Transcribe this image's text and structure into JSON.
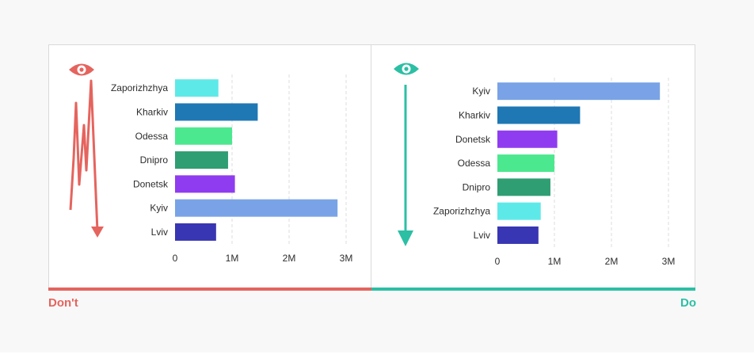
{
  "colors": {
    "dont": "#e5645e",
    "do": "#2cbfa4",
    "grid": "#dcdcdc",
    "cities": {
      "Zaporizhzhya": "#5ee9e9",
      "Kharkiv": "#1f78b4",
      "Odessa": "#4ce88f",
      "Dnipro": "#2f9e72",
      "Donetsk": "#8f3cf0",
      "Kyiv": "#79a3e6",
      "Lviv": "#3936b3"
    }
  },
  "labels": {
    "dont": "Don't",
    "do": "Do"
  },
  "icons": {
    "dont_eye": "eye-icon",
    "dont_arrow": "zigzag-arrow-icon",
    "do_eye": "eye-icon",
    "do_arrow": "down-arrow-icon"
  },
  "chart_data": [
    {
      "type": "bar",
      "orientation": "horizontal",
      "title": "",
      "xlabel": "",
      "ylabel": "",
      "categories": [
        "Zaporizhzhya",
        "Kharkiv",
        "Odessa",
        "Dnipro",
        "Donetsk",
        "Kyiv",
        "Lviv"
      ],
      "values": [
        760000,
        1450000,
        1000000,
        930000,
        1050000,
        2850000,
        720000
      ],
      "xlim": [
        0,
        3000000
      ],
      "xticks": [
        "0",
        "1M",
        "2M",
        "3M"
      ],
      "grid": true
    },
    {
      "type": "bar",
      "orientation": "horizontal",
      "title": "",
      "xlabel": "",
      "ylabel": "",
      "categories": [
        "Kyiv",
        "Kharkiv",
        "Donetsk",
        "Odessa",
        "Dnipro",
        "Zaporizhzhya",
        "Lviv"
      ],
      "values": [
        2850000,
        1450000,
        1050000,
        1000000,
        930000,
        760000,
        720000
      ],
      "xlim": [
        0,
        3000000
      ],
      "xticks": [
        "0",
        "1M",
        "2M",
        "3M"
      ],
      "grid": true
    }
  ]
}
